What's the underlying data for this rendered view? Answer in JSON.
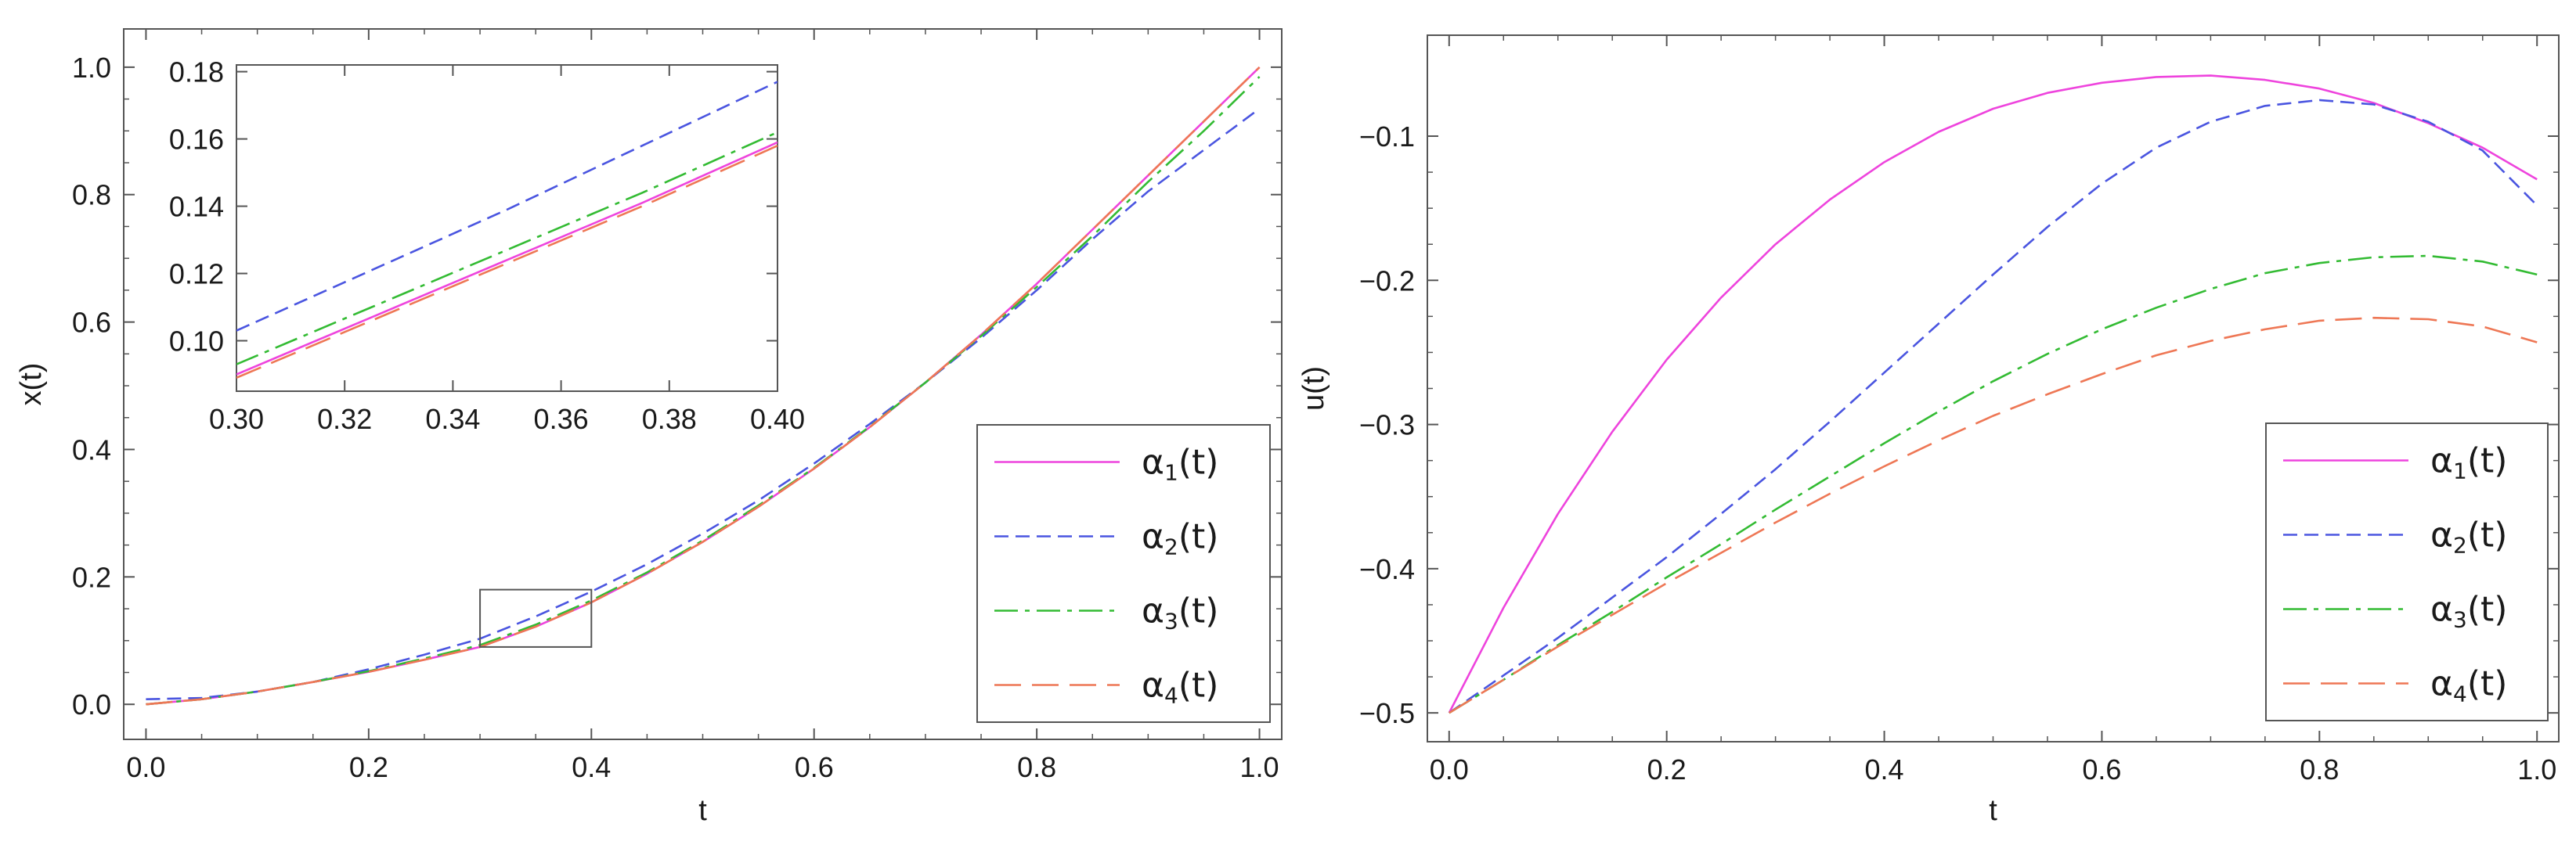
{
  "chart_data": [
    {
      "type": "line",
      "xlabel": "t",
      "ylabel": "x(t)",
      "xlim": [
        -0.02,
        1.02
      ],
      "ylim": [
        -0.055,
        1.06
      ],
      "xticks": [
        0.0,
        0.2,
        0.4,
        0.6,
        0.8,
        1.0
      ],
      "yticks": [
        0.0,
        0.2,
        0.4,
        0.6,
        0.8,
        1.0
      ],
      "xtick_labels": [
        "0.0",
        "0.2",
        "0.4",
        "0.6",
        "0.8",
        "1.0"
      ],
      "ytick_labels": [
        "0.0",
        "0.2",
        "0.4",
        "0.6",
        "0.8",
        "1.0"
      ],
      "legend": {
        "position": "bottom-right",
        "entries": [
          "α₁(t)",
          "α₂(t)",
          "α₃(t)",
          "α₄(t)"
        ]
      },
      "x": [
        0.0,
        0.05,
        0.1,
        0.15,
        0.2,
        0.25,
        0.3,
        0.35,
        0.4,
        0.45,
        0.5,
        0.55,
        0.6,
        0.65,
        0.7,
        0.75,
        0.8,
        0.85,
        0.9,
        0.95,
        1.0
      ],
      "series": [
        {
          "name": "α₁(t)",
          "color": "#ee44dd",
          "dash": "",
          "values": [
            0.0,
            0.008,
            0.02,
            0.035,
            0.051,
            0.07,
            0.09,
            0.122,
            0.16,
            0.205,
            0.255,
            0.31,
            0.37,
            0.435,
            0.505,
            0.58,
            0.66,
            0.745,
            0.83,
            0.915,
            1.0
          ]
        },
        {
          "name": "α₂(t)",
          "color": "#4a55e0",
          "dash": "18 9",
          "values": [
            0.008,
            0.01,
            0.02,
            0.035,
            0.055,
            0.078,
            0.103,
            0.138,
            0.177,
            0.22,
            0.268,
            0.32,
            0.378,
            0.44,
            0.505,
            0.575,
            0.65,
            0.73,
            0.805,
            0.87,
            0.935
          ]
        },
        {
          "name": "α₃(t)",
          "color": "#33bb33",
          "dash": "30 9 6 9",
          "values": [
            0.0,
            0.008,
            0.02,
            0.035,
            0.052,
            0.072,
            0.093,
            0.125,
            0.163,
            0.207,
            0.257,
            0.312,
            0.371,
            0.436,
            0.505,
            0.578,
            0.655,
            0.735,
            0.82,
            0.9,
            0.985
          ]
        },
        {
          "name": "α₄(t)",
          "color": "#ee7755",
          "dash": "34 14",
          "values": [
            0.0,
            0.008,
            0.02,
            0.035,
            0.051,
            0.07,
            0.09,
            0.122,
            0.16,
            0.205,
            0.255,
            0.31,
            0.37,
            0.435,
            0.505,
            0.58,
            0.66,
            0.745,
            0.83,
            0.915,
            1.0
          ]
        }
      ],
      "zoom_box": {
        "x": [
          0.3,
          0.4
        ],
        "y": [
          0.09,
          0.18
        ]
      },
      "inset": {
        "xlim": [
          0.3,
          0.4
        ],
        "ylim": [
          0.085,
          0.182
        ],
        "xticks": [
          0.3,
          0.32,
          0.34,
          0.36,
          0.38,
          0.4
        ],
        "yticks": [
          0.1,
          0.12,
          0.14,
          0.16,
          0.18
        ],
        "xtick_labels": [
          "0.30",
          "0.32",
          "0.34",
          "0.36",
          "0.38",
          "0.40"
        ],
        "ytick_labels": [
          "0.10",
          "0.12",
          "0.14",
          "0.16",
          "0.18"
        ],
        "x": [
          0.3,
          0.325,
          0.35,
          0.375,
          0.4
        ],
        "series": [
          {
            "name": "α₁(t)",
            "values": [
              0.09,
              0.107,
              0.124,
              0.141,
              0.159
            ]
          },
          {
            "name": "α₂(t)",
            "values": [
              0.103,
              0.121,
              0.139,
              0.158,
              0.177
            ]
          },
          {
            "name": "α₃(t)",
            "values": [
              0.093,
              0.11,
              0.127,
              0.144,
              0.162
            ]
          },
          {
            "name": "α₄(t)",
            "values": [
              0.089,
              0.106,
              0.123,
              0.14,
              0.158
            ]
          }
        ]
      }
    },
    {
      "type": "line",
      "xlabel": "t",
      "ylabel": "u(t)",
      "xlim": [
        -0.02,
        1.02
      ],
      "ylim": [
        -0.52,
        -0.03
      ],
      "xticks": [
        0.0,
        0.2,
        0.4,
        0.6,
        0.8,
        1.0
      ],
      "yticks": [
        -0.5,
        -0.4,
        -0.3,
        -0.2,
        -0.1
      ],
      "xtick_labels": [
        "0.0",
        "0.2",
        "0.4",
        "0.6",
        "0.8",
        "1.0"
      ],
      "ytick_labels": [
        "−0.5",
        "−0.4",
        "−0.3",
        "−0.2",
        "−0.1"
      ],
      "legend": {
        "position": "bottom-right",
        "entries": [
          "α₁(t)",
          "α₂(t)",
          "α₃(t)",
          "α₄(t)"
        ]
      },
      "x": [
        0.0,
        0.05,
        0.1,
        0.15,
        0.2,
        0.25,
        0.3,
        0.35,
        0.4,
        0.45,
        0.5,
        0.55,
        0.6,
        0.65,
        0.7,
        0.75,
        0.8,
        0.85,
        0.9,
        0.95,
        1.0
      ],
      "series": [
        {
          "name": "α₁(t)",
          "color": "#ee44dd",
          "dash": "",
          "values": [
            -0.5,
            -0.427,
            -0.362,
            -0.305,
            -0.255,
            -0.212,
            -0.175,
            -0.144,
            -0.118,
            -0.097,
            -0.081,
            -0.07,
            -0.063,
            -0.059,
            -0.058,
            -0.061,
            -0.067,
            -0.077,
            -0.091,
            -0.108,
            -0.13
          ]
        },
        {
          "name": "α₂(t)",
          "color": "#4a55e0",
          "dash": "18 9",
          "values": [
            -0.5,
            -0.474,
            -0.448,
            -0.42,
            -0.392,
            -0.362,
            -0.331,
            -0.298,
            -0.264,
            -0.23,
            -0.196,
            -0.163,
            -0.133,
            -0.108,
            -0.09,
            -0.079,
            -0.075,
            -0.078,
            -0.09,
            -0.11,
            -0.148
          ]
        },
        {
          "name": "α₃(t)",
          "color": "#33bb33",
          "dash": "30 9 6 9",
          "values": [
            -0.5,
            -0.477,
            -0.453,
            -0.43,
            -0.406,
            -0.383,
            -0.359,
            -0.336,
            -0.313,
            -0.291,
            -0.27,
            -0.251,
            -0.234,
            -0.219,
            -0.206,
            -0.195,
            -0.188,
            -0.184,
            -0.183,
            -0.187,
            -0.196
          ]
        },
        {
          "name": "α₄(t)",
          "color": "#ee7755",
          "dash": "34 14",
          "values": [
            -0.5,
            -0.477,
            -0.454,
            -0.432,
            -0.41,
            -0.389,
            -0.368,
            -0.348,
            -0.329,
            -0.311,
            -0.294,
            -0.279,
            -0.265,
            -0.252,
            -0.242,
            -0.234,
            -0.228,
            -0.226,
            -0.227,
            -0.232,
            -0.243
          ]
        }
      ]
    }
  ]
}
